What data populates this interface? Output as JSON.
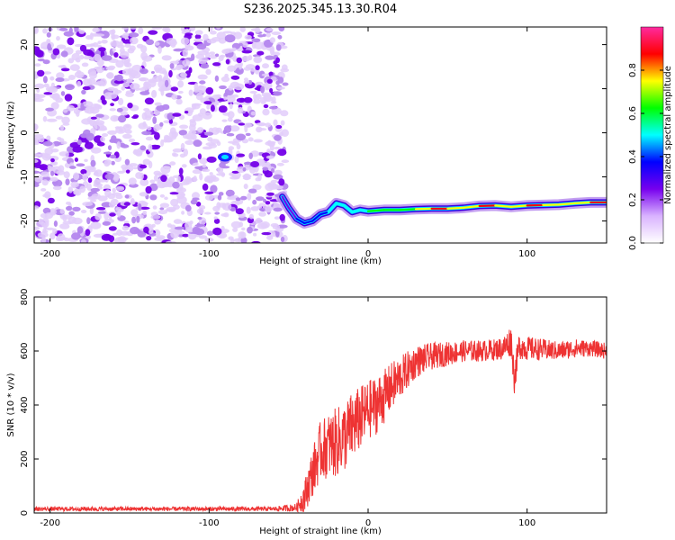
{
  "title": "S236.2025.345.13.30.R04",
  "chart_data": [
    {
      "type": "heatmap",
      "xlabel": "Height of straight line (km)",
      "ylabel": "Frequency (Hz)",
      "xlim": [
        -210,
        150
      ],
      "ylim": [
        -25,
        24
      ],
      "xticks": [
        -200,
        -100,
        0,
        100
      ],
      "yticks": [
        -20,
        -10,
        0,
        10,
        20
      ],
      "noise_region_x": [
        -210,
        -52
      ],
      "colorbar": {
        "label": "Normalized spectral amplitude",
        "range": [
          0,
          1
        ],
        "ticks": [
          0.0,
          0.2,
          0.4,
          0.6,
          0.8
        ],
        "tick_labels": [
          "0.0",
          "0.2",
          "0.4",
          "0.6",
          "0.8"
        ],
        "colors": [
          "#ffffff",
          "#d9b3ff",
          "#7700ee",
          "#0000ff",
          "#00ffff",
          "#00ff00",
          "#ffff00",
          "#ff0000",
          "#ff2aa0"
        ]
      },
      "signal_trace": [
        {
          "x": -54,
          "f": -14.5,
          "a": 0.25
        },
        {
          "x": -50,
          "f": -17.0,
          "a": 0.28
        },
        {
          "x": -45,
          "f": -19.5,
          "a": 0.3
        },
        {
          "x": -40,
          "f": -20.5,
          "a": 0.33
        },
        {
          "x": -35,
          "f": -20.0,
          "a": 0.3
        },
        {
          "x": -30,
          "f": -18.5,
          "a": 0.35
        },
        {
          "x": -25,
          "f": -18.0,
          "a": 0.4
        },
        {
          "x": -20,
          "f": -16.0,
          "a": 0.5
        },
        {
          "x": -15,
          "f": -16.5,
          "a": 0.55
        },
        {
          "x": -10,
          "f": -18.0,
          "a": 0.5
        },
        {
          "x": -5,
          "f": -17.5,
          "a": 0.55
        },
        {
          "x": 0,
          "f": -17.8,
          "a": 0.55
        },
        {
          "x": 10,
          "f": -17.5,
          "a": 0.6
        },
        {
          "x": 20,
          "f": -17.5,
          "a": 0.62
        },
        {
          "x": 30,
          "f": -17.3,
          "a": 0.65
        },
        {
          "x": 40,
          "f": -17.2,
          "a": 0.8
        },
        {
          "x": 50,
          "f": -17.2,
          "a": 0.85
        },
        {
          "x": 60,
          "f": -17.0,
          "a": 0.7
        },
        {
          "x": 70,
          "f": -16.6,
          "a": 0.85
        },
        {
          "x": 80,
          "f": -16.5,
          "a": 0.9
        },
        {
          "x": 90,
          "f": -16.8,
          "a": 0.7
        },
        {
          "x": 100,
          "f": -16.5,
          "a": 0.85
        },
        {
          "x": 110,
          "f": -16.4,
          "a": 0.85
        },
        {
          "x": 120,
          "f": -16.3,
          "a": 0.7
        },
        {
          "x": 130,
          "f": -16.0,
          "a": 0.75
        },
        {
          "x": 140,
          "f": -15.8,
          "a": 0.85
        },
        {
          "x": 150,
          "f": -15.8,
          "a": 0.8
        }
      ],
      "isolated_blob": {
        "x": -90,
        "f": -5.5,
        "a": 0.25
      }
    },
    {
      "type": "line",
      "xlabel": "Height of straight line (km)",
      "ylabel": "SNR (10 * v/v)",
      "xlim": [
        -210,
        150
      ],
      "ylim": [
        0,
        800
      ],
      "xticks": [
        -200,
        -100,
        0,
        100
      ],
      "yticks": [
        0,
        200,
        400,
        600,
        800
      ],
      "series": [
        {
          "color": "#ee3333",
          "x": [
            -210,
            -180,
            -150,
            -120,
            -90,
            -60,
            -45,
            -40,
            -35,
            -30,
            -25,
            -20,
            -15,
            -10,
            -5,
            0,
            5,
            10,
            15,
            20,
            25,
            30,
            40,
            50,
            60,
            70,
            80,
            85,
            90,
            92,
            95,
            100,
            110,
            120,
            130,
            140,
            150
          ],
          "y": [
            15,
            15,
            15,
            15,
            15,
            15,
            20,
            60,
            150,
            230,
            250,
            260,
            280,
            320,
            350,
            380,
            400,
            430,
            470,
            500,
            530,
            560,
            580,
            590,
            600,
            600,
            605,
            610,
            640,
            500,
            620,
            610,
            605,
            600,
            610,
            610,
            600
          ],
          "noise": [
            8,
            8,
            8,
            8,
            8,
            8,
            15,
            60,
            90,
            110,
            120,
            130,
            130,
            130,
            120,
            110,
            110,
            100,
            90,
            80,
            70,
            60,
            50,
            45,
            40,
            40,
            40,
            45,
            60,
            60,
            50,
            45,
            40,
            35,
            35,
            30,
            30
          ]
        }
      ]
    }
  ]
}
